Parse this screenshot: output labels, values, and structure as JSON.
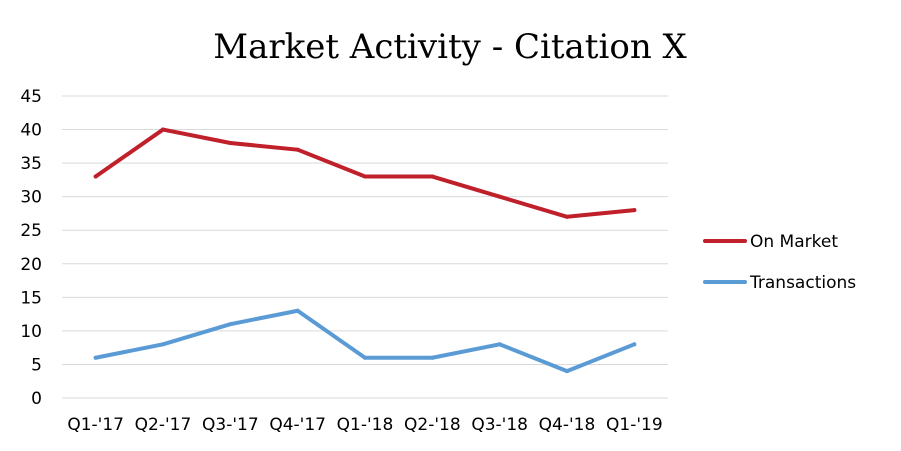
{
  "chart_data": {
    "type": "line",
    "title": "Market Activity - Citation X",
    "xlabel": "",
    "ylabel": "",
    "categories": [
      "Q1-'17",
      "Q2-'17",
      "Q3-'17",
      "Q4-'17",
      "Q1-'18",
      "Q2-'18",
      "Q3-'18",
      "Q4-'18",
      "Q1-'19"
    ],
    "ylim": [
      0,
      45
    ],
    "yticks": [
      0,
      5,
      10,
      15,
      20,
      25,
      30,
      35,
      40,
      45
    ],
    "grid": true,
    "legend_position": "right",
    "series": [
      {
        "name": "On Market",
        "color": "#c0202a",
        "values": [
          33,
          40,
          38,
          37,
          33,
          33,
          30,
          27,
          28
        ]
      },
      {
        "name": "Transactions",
        "color": "#5b9bd5",
        "values": [
          6,
          8,
          11,
          13,
          6,
          6,
          8,
          4,
          8
        ]
      }
    ]
  }
}
